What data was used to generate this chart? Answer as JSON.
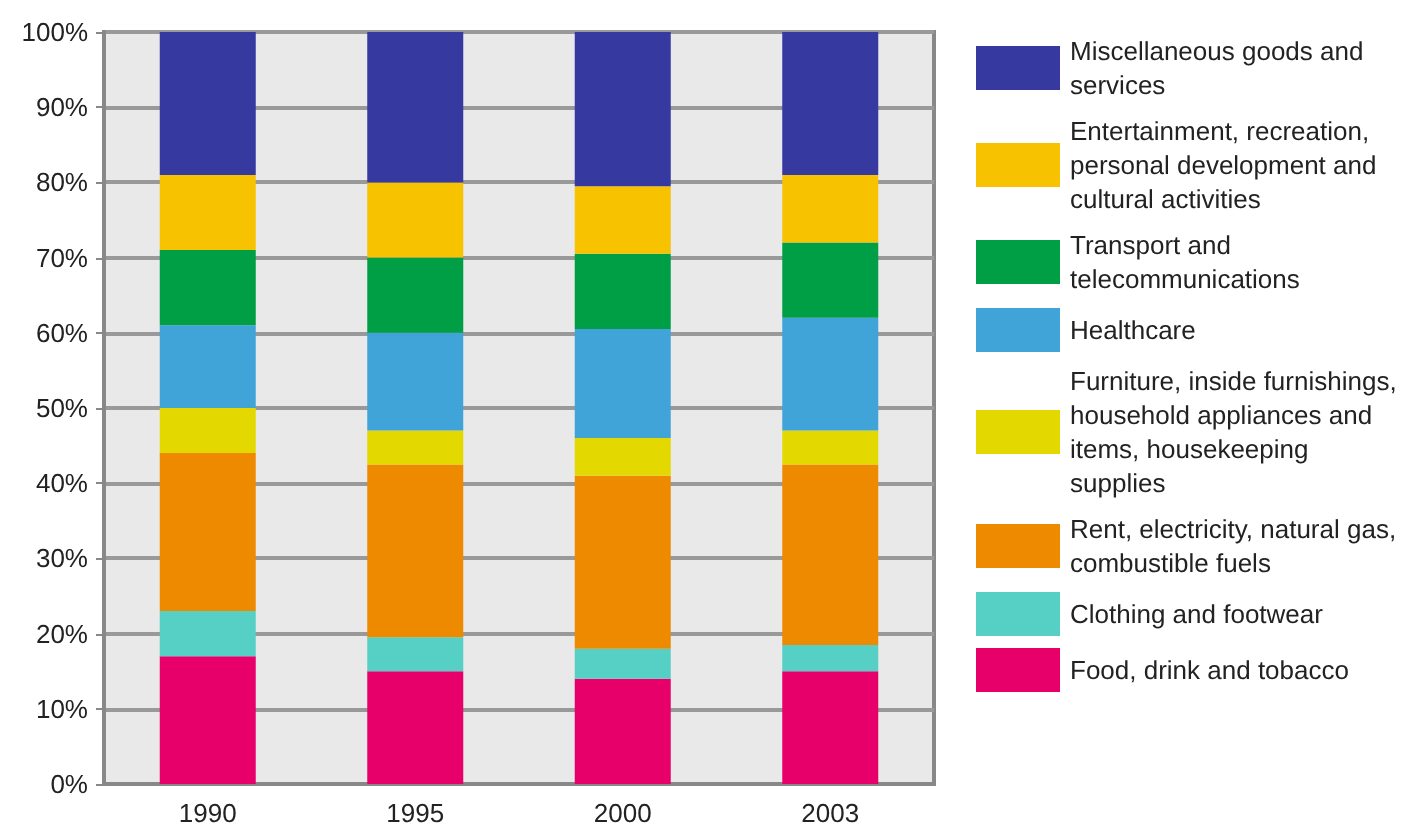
{
  "chart_data": {
    "type": "bar",
    "stacked": true,
    "categories": [
      "1990",
      "1995",
      "2000",
      "2003"
    ],
    "series": [
      {
        "name": "Food, drink and tobacco",
        "color": "#e8006a",
        "values": [
          17,
          15,
          14,
          15
        ]
      },
      {
        "name": "Clothing and footwear",
        "color": "#56d0c4",
        "values": [
          6,
          4.5,
          4,
          3.5
        ]
      },
      {
        "name": "Rent, electricity, natural gas, combustible fuels",
        "color": "#ee8a00",
        "values": [
          21,
          23,
          23,
          24
        ]
      },
      {
        "name": "Furniture, inside furnishings, household appliances and items, housekeeping supplies",
        "color": "#e3d800",
        "values": [
          6,
          4.5,
          5,
          4.5
        ]
      },
      {
        "name": "Healthcare",
        "color": "#40a4d8",
        "values": [
          11,
          13,
          14.5,
          15
        ]
      },
      {
        "name": "Transport and telecommunications",
        "color": "#009e45",
        "values": [
          10,
          10,
          10,
          10
        ]
      },
      {
        "name": "Entertainment, recreation, personal development and cultural activities",
        "color": "#f7c200",
        "values": [
          10,
          10,
          9,
          9
        ]
      },
      {
        "name": "Miscellaneous goods and services",
        "color": "#3539a0",
        "values": [
          19,
          20,
          20.5,
          19
        ]
      }
    ],
    "ylim": [
      0,
      100
    ],
    "yticks": [
      {
        "value": 0,
        "label": "0%"
      },
      {
        "value": 10,
        "label": "10%"
      },
      {
        "value": 20,
        "label": "20%"
      },
      {
        "value": 30,
        "label": "30%"
      },
      {
        "value": 40,
        "label": "40%"
      },
      {
        "value": 50,
        "label": "50%"
      },
      {
        "value": 60,
        "label": "60%"
      },
      {
        "value": 70,
        "label": "70%"
      },
      {
        "value": 80,
        "label": "80%"
      },
      {
        "value": 90,
        "label": "90%"
      },
      {
        "value": 100,
        "label": "100%"
      }
    ],
    "grid": "y",
    "legend": "right"
  }
}
